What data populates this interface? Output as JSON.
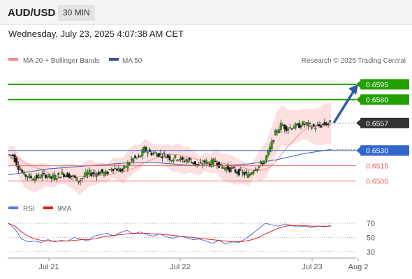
{
  "header": {
    "symbol": "AUD/USD",
    "timeframe": "30 MIN",
    "datetime": "Wednesday, July 23, 2025 4:07:38 AM CET"
  },
  "legend": {
    "ma20_label": "MA 20 + Bollinger Bands",
    "ma50_label": "MA 50",
    "rsi_label": "RSI",
    "ma9_label": "9MA",
    "credit": "Research © 2025 Trading Central"
  },
  "colors": {
    "bullish": "#22a000",
    "bearish": "#5aa02c",
    "support": "#e46464",
    "pivot": "#3366cc",
    "current": "#333333",
    "arrow": "#2a5d9f",
    "bollinger_fill": "#fbd5d5",
    "ma50": "#3a5fa8",
    "rsi": "#5577dd",
    "rsi_ma": "#dd2222"
  },
  "chart_data": [
    {
      "type": "candlestick",
      "title": "AUD/USD",
      "timeframe": "30 MIN",
      "x_ticks": [
        "Jul 21",
        "Jul 22",
        "Jul 23",
        "Aug 2"
      ],
      "ylim": [
        0.6486,
        0.6612
      ],
      "levels": [
        {
          "value": 0.6595,
          "label": "0.6595",
          "kind": "resistance"
        },
        {
          "value": 0.658,
          "label": "0.6580",
          "kind": "resistance"
        },
        {
          "value": 0.6557,
          "label": "0.6557",
          "kind": "current"
        },
        {
          "value": 0.653,
          "label": "0.6530",
          "kind": "pivot"
        },
        {
          "value": 0.6515,
          "label": "0.6515",
          "kind": "support"
        },
        {
          "value": 0.65,
          "label": "0.6500",
          "kind": "support"
        }
      ],
      "path": [
        0.6526,
        0.6525,
        0.6514,
        0.6506,
        0.6504,
        0.6503,
        0.6505,
        0.6506,
        0.6503,
        0.6505,
        0.6507,
        0.6506,
        0.6504,
        0.65,
        0.6505,
        0.6508,
        0.6507,
        0.6509,
        0.6507,
        0.6513,
        0.6512,
        0.651,
        0.6517,
        0.6522,
        0.6523,
        0.6531,
        0.6528,
        0.6527,
        0.6526,
        0.6525,
        0.6522,
        0.6523,
        0.652,
        0.6521,
        0.6518,
        0.6515,
        0.6519,
        0.6517,
        0.652,
        0.6514,
        0.6513,
        0.6511,
        0.6509,
        0.6508,
        0.6505,
        0.6512,
        0.6515,
        0.652,
        0.6532,
        0.6547,
        0.6555,
        0.6552,
        0.6553,
        0.6554,
        0.6556,
        0.6555,
        0.6553,
        0.6554,
        0.6556,
        0.6557
      ],
      "ma50": [
        0.6506,
        0.6508,
        0.651,
        0.6512,
        0.6513,
        0.6514,
        0.6515,
        0.6516,
        0.6517,
        0.6518,
        0.6518,
        0.6518,
        0.6517,
        0.6516,
        0.6515,
        0.6515,
        0.6515,
        0.6516,
        0.6517,
        0.6519,
        0.6521,
        0.6524,
        0.6527,
        0.6529,
        0.6531
      ],
      "projection": {
        "from": 0.6557,
        "to": 0.6595
      }
    },
    {
      "type": "line",
      "title": "RSI",
      "ylim": [
        25,
        78
      ],
      "y_ticks": [
        70,
        50,
        30
      ],
      "series": [
        {
          "name": "RSI",
          "values": [
            70,
            62,
            48,
            44,
            45,
            43,
            47,
            44,
            46,
            45,
            50,
            48,
            45,
            52,
            54,
            56,
            52,
            57,
            60,
            55,
            58,
            54,
            52,
            55,
            51,
            49,
            52,
            50,
            47,
            48,
            45,
            42,
            46,
            41,
            44,
            43,
            48,
            55,
            62,
            70,
            68,
            66,
            69,
            67,
            65,
            66,
            64,
            66,
            65,
            67
          ]
        },
        {
          "name": "9MA",
          "values": [
            70,
            66,
            58,
            52,
            48,
            46,
            45,
            45,
            45,
            45,
            46,
            47,
            47,
            48,
            50,
            52,
            53,
            54,
            55,
            56,
            56,
            56,
            55,
            55,
            54,
            53,
            52,
            51,
            50,
            49,
            48,
            47,
            46,
            45,
            44,
            44,
            45,
            47,
            50,
            55,
            59,
            63,
            66,
            67,
            67,
            67,
            66,
            66,
            66,
            66
          ]
        }
      ]
    }
  ]
}
